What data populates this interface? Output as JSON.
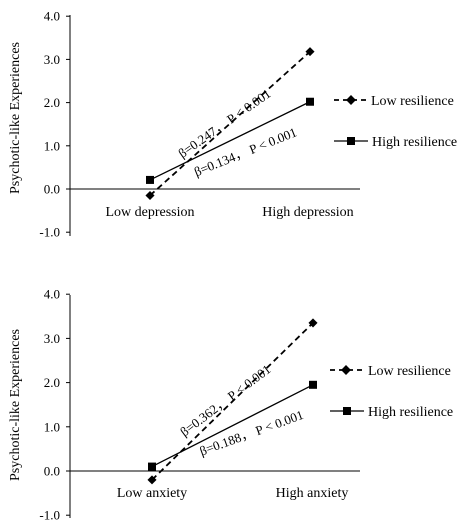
{
  "chart_data": [
    {
      "type": "line",
      "title": "",
      "ylabel": "Psychotic-like Experiences",
      "categories": [
        "Low depression",
        "High depression"
      ],
      "ylim": [
        -1.0,
        4.0
      ],
      "yticks": [
        "-1.0",
        "0.0",
        "1.0",
        "2.0",
        "3.0",
        "4.0"
      ],
      "series": [
        {
          "name": "Low resilience",
          "values": [
            -0.15,
            3.18
          ],
          "style": "dashed",
          "marker": "diamond"
        },
        {
          "name": "High resilience",
          "values": [
            0.21,
            2.02
          ],
          "style": "solid",
          "marker": "square"
        }
      ],
      "annotations": [
        "β=0.247， P < 0.001",
        "β=0.134， P < 0.001"
      ],
      "legend": "right"
    },
    {
      "type": "line",
      "title": "",
      "ylabel": "Psychotic-like  Experiences",
      "categories": [
        "Low anxiety",
        "High anxiety"
      ],
      "ylim": [
        -1.0,
        4.0
      ],
      "yticks": [
        "-1.0",
        "0.0",
        "1.0",
        "2.0",
        "3.0",
        "4.0"
      ],
      "series": [
        {
          "name": "Low resilience",
          "values": [
            -0.2,
            3.35
          ],
          "style": "dashed",
          "marker": "diamond"
        },
        {
          "name": "High resilience",
          "values": [
            0.1,
            1.95
          ],
          "style": "solid",
          "marker": "square"
        }
      ],
      "annotations": [
        "β=0.362， P < 0.001",
        "β=0.188， P < 0.001"
      ],
      "legend": "right"
    }
  ]
}
